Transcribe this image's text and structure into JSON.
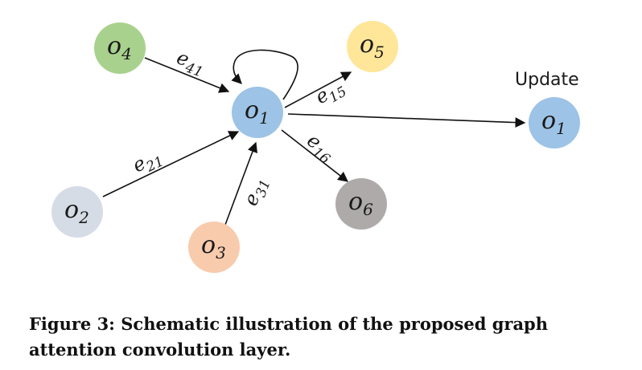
{
  "nodes": {
    "o4": {
      "base": "o",
      "sub": "4",
      "color": "#a9d18e"
    },
    "o5": {
      "base": "o",
      "sub": "5",
      "color": "#ffe699"
    },
    "o1": {
      "base": "o",
      "sub": "1",
      "color": "#9dc3e6"
    },
    "o1_update": {
      "base": "o",
      "sub": "1",
      "color": "#9dc3e6"
    },
    "o2": {
      "base": "o",
      "sub": "2",
      "color": "#d6dce5"
    },
    "o3": {
      "base": "o",
      "sub": "3",
      "color": "#f8cbad"
    },
    "o6": {
      "base": "o",
      "sub": "6",
      "color": "#aeaaaa"
    }
  },
  "edges": {
    "e41": {
      "base": "e",
      "sub": "41"
    },
    "e21": {
      "base": "e",
      "sub": "21"
    },
    "e31": {
      "base": "e",
      "sub": "31"
    },
    "e15": {
      "base": "e",
      "sub": "15"
    },
    "e16": {
      "base": "e",
      "sub": "16"
    }
  },
  "update_label": "Update",
  "caption": "Figure 3: Schematic illustration of the proposed graph attention convolution layer."
}
